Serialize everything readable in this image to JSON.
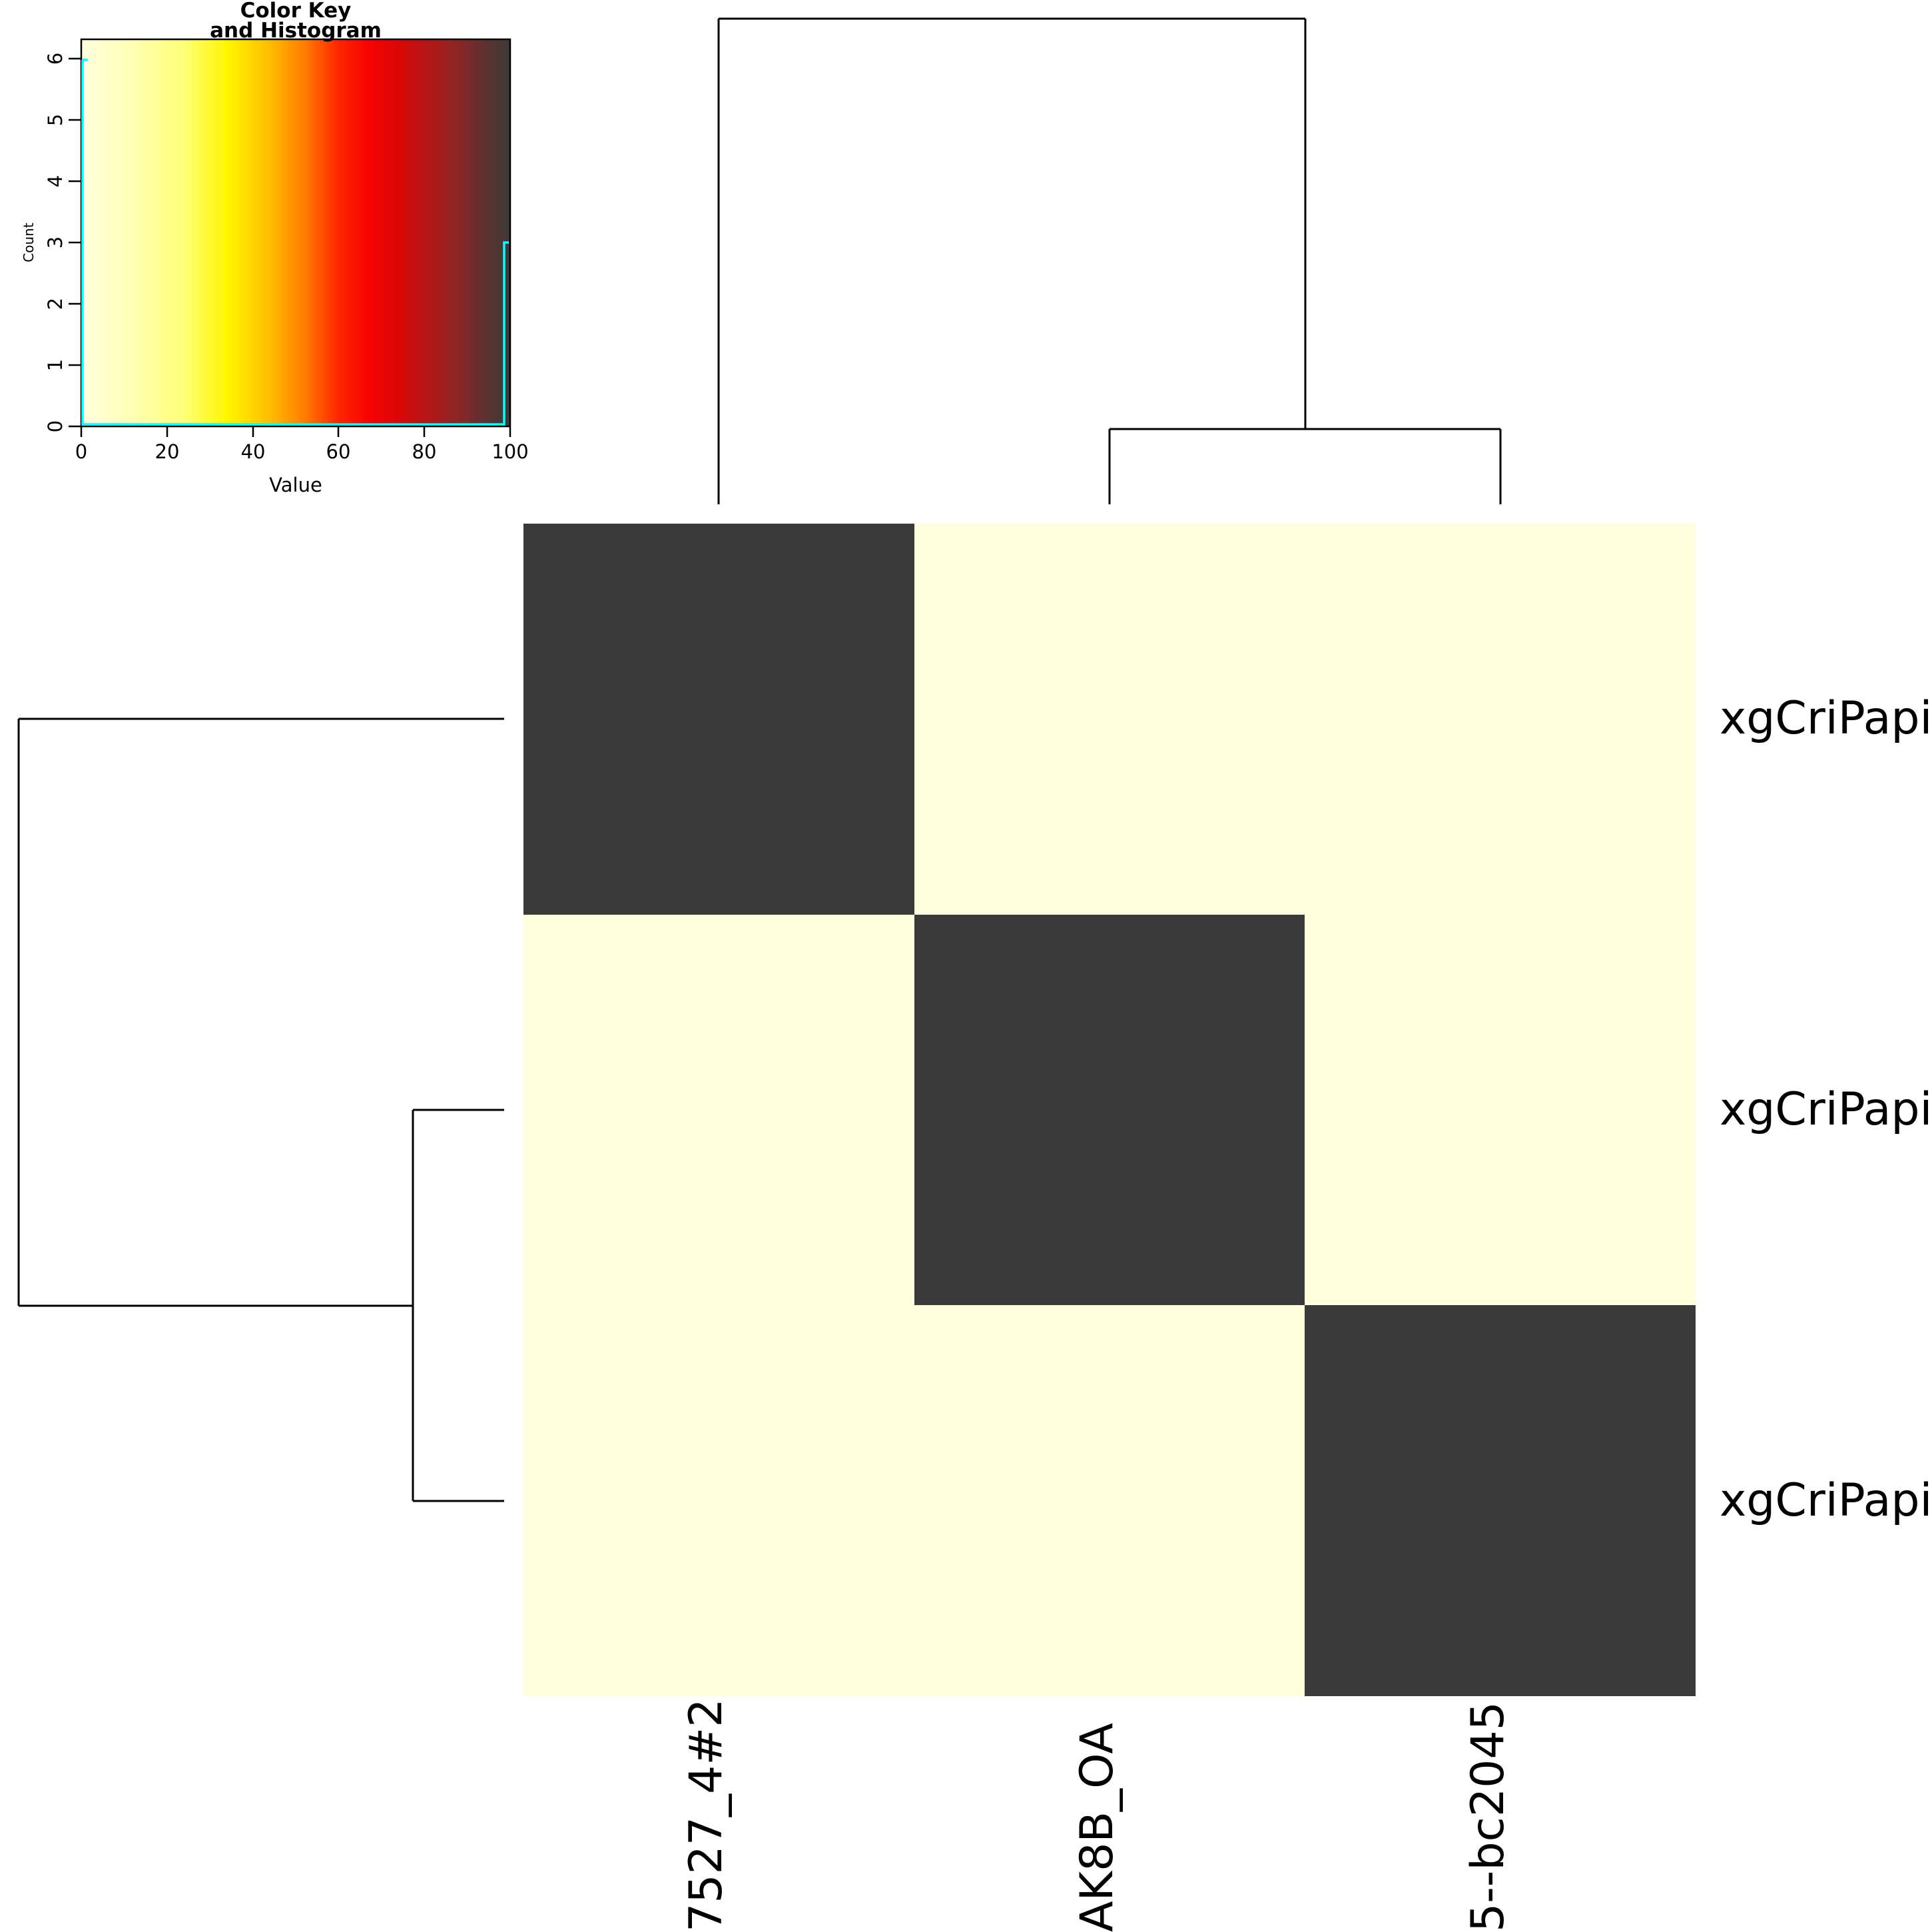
{
  "color_key": {
    "title_line1": "Color Key",
    "title_line2": "and Histogram",
    "xlabel": "Value",
    "ylabel": "Count",
    "x_ticks": [
      "0",
      "20",
      "40",
      "60",
      "80",
      "100"
    ],
    "y_ticks": [
      "0",
      "1",
      "2",
      "3",
      "4",
      "5",
      "6"
    ],
    "trace_color": "#00ffff"
  },
  "heatmap": {
    "row_labels": [
      "xgCriPapi",
      "xgCriPapi",
      "xgCriPapi"
    ],
    "col_labels": [
      "7527_4#2",
      "AK8B_OA",
      "5--bc2045"
    ],
    "high_color": "#3a3a3a",
    "low_color": "#ffffde"
  },
  "chart_data": {
    "type": "heatmap",
    "title": "Color Key and Histogram",
    "categories_x_visible": [
      "7527_4#2",
      "AK8B_OA",
      "5--bc2045"
    ],
    "categories_y_visible": [
      "xgCriPapi",
      "xgCriPapi",
      "xgCriPapi"
    ],
    "values": [
      [
        100,
        0,
        0
      ],
      [
        0,
        100,
        0
      ],
      [
        0,
        0,
        100
      ]
    ],
    "color_scale": {
      "min": 0,
      "max": 100,
      "low_color": "#ffffde",
      "mid_colors": [
        "#ffff00",
        "#ff8000",
        "#ff0000",
        "#8a2424"
      ],
      "high_color": "#3a3a3a"
    },
    "color_key_histogram": {
      "xlabel": "Value",
      "ylabel": "Count",
      "x_ticks": [
        0,
        20,
        40,
        60,
        80,
        100
      ],
      "y_ticks": [
        0,
        1,
        2,
        3,
        4,
        5,
        6
      ],
      "bins": [
        {
          "value": 0,
          "count": 6
        },
        {
          "value": 100,
          "count": 3
        }
      ],
      "trace_color": "#00ffff"
    },
    "row_dendrogram_structure": "(row1,(row2,row3))",
    "col_dendrogram_structure": "(col1,(col2,col3))",
    "legend_position": "top-left",
    "grid": false
  }
}
